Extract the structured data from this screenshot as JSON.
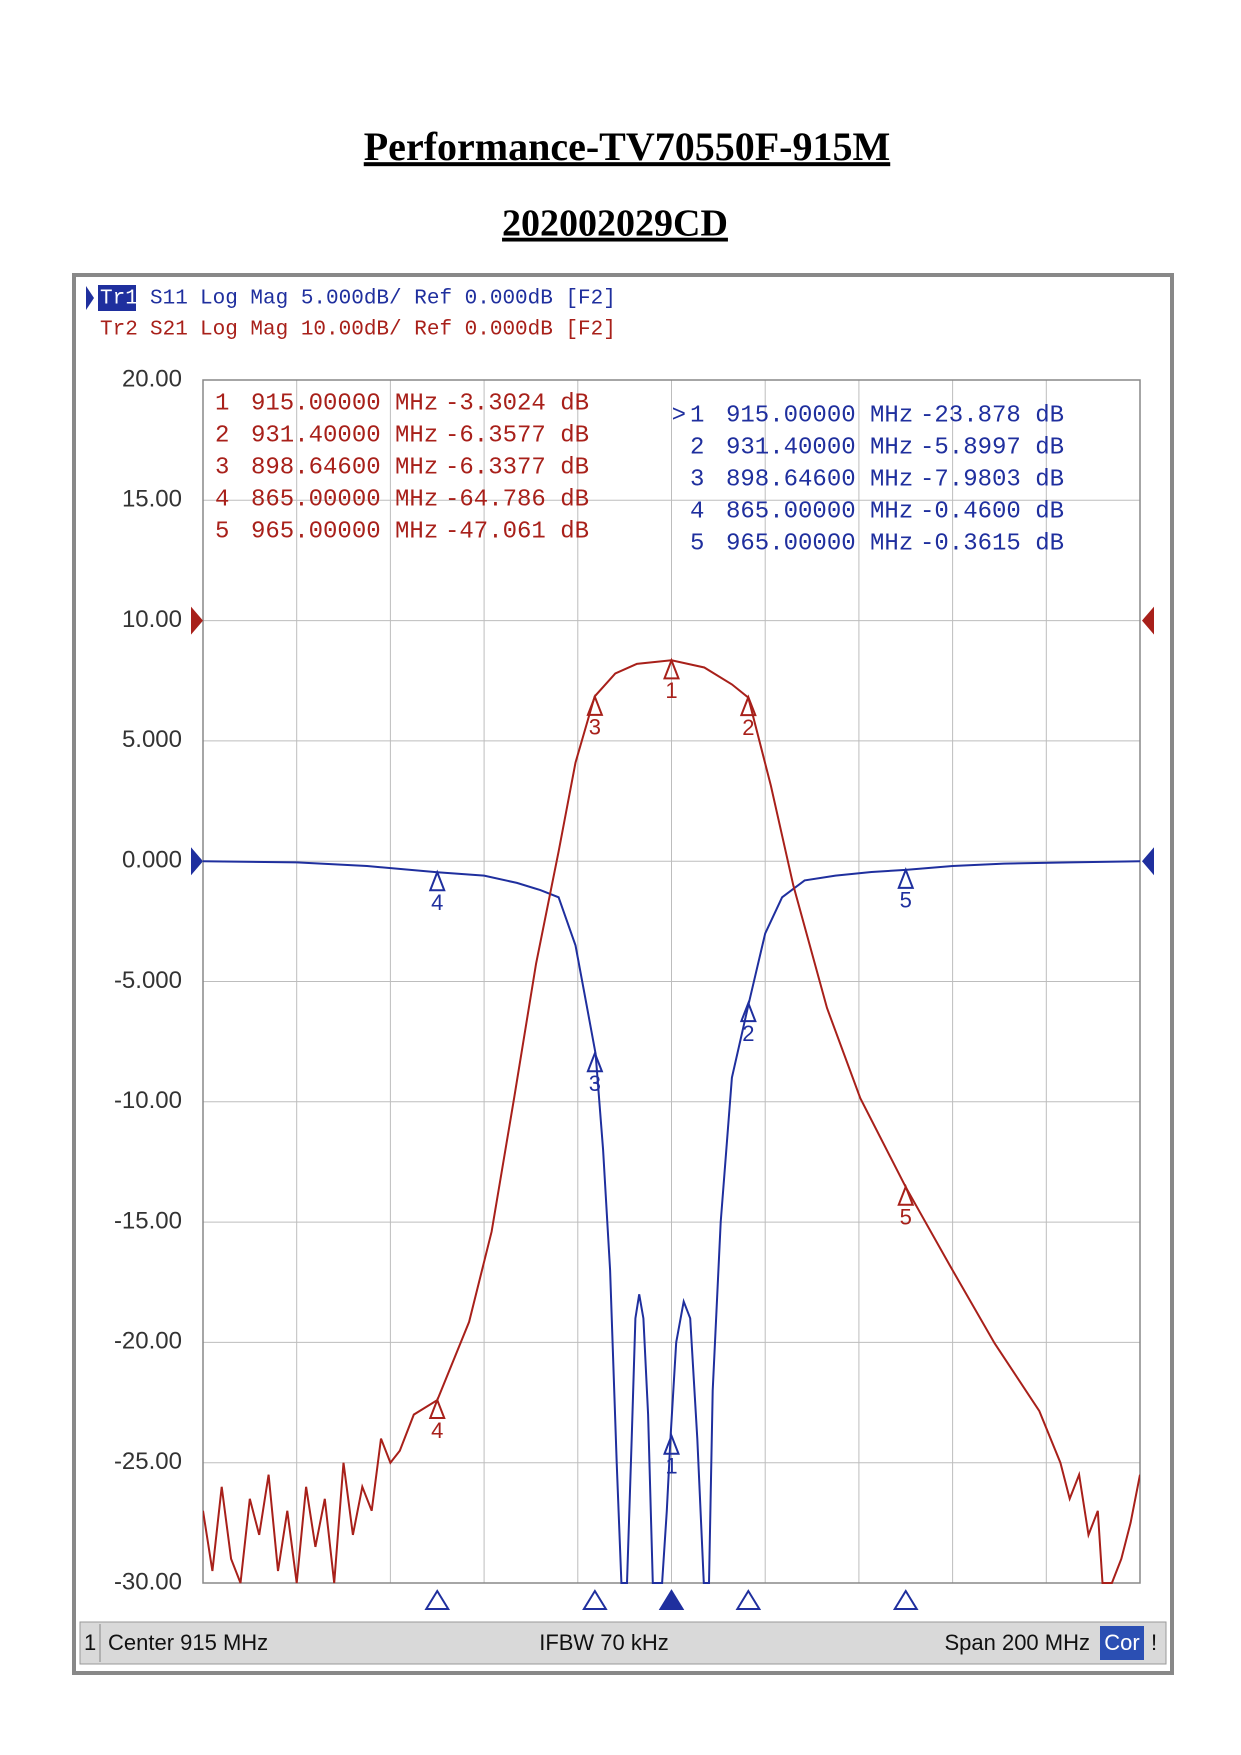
{
  "title": "Performance-TV70550F-915M",
  "subtitle": "202002029CD",
  "chart_data": {
    "type": "line",
    "xlim": [
      815,
      1015
    ],
    "ylim": [
      -30,
      20
    ],
    "y2lim": [
      -80,
      20
    ],
    "yticks": [
      {
        "value": 20,
        "label": "20.00"
      },
      {
        "value": 15,
        "label": "15.00"
      },
      {
        "value": 10,
        "label": "10.00"
      },
      {
        "value": 5,
        "label": "5.000"
      },
      {
        "value": 0,
        "label": "0.000"
      },
      {
        "value": -5,
        "label": "-5.000"
      },
      {
        "value": -10,
        "label": "-10.00"
      },
      {
        "value": -15,
        "label": "-15.00"
      },
      {
        "value": -20,
        "label": "-20.00"
      },
      {
        "value": -25,
        "label": "-25.00"
      },
      {
        "value": -30,
        "label": "-30.00"
      }
    ],
    "grid": true,
    "series": [
      {
        "trace": "Tr1",
        "name": "S11",
        "header": "Log Mag 5.000dB/ Ref 0.000dB [F2]",
        "ref": 0,
        "color": "#1f2f9e",
        "x": [
          815,
          835,
          850,
          865,
          875,
          882,
          887,
          890.9,
          894.5,
          896.9,
          898.8,
          900.4,
          901.9,
          903.3,
          904.3,
          905.5,
          906.5,
          907.3,
          908.1,
          909,
          910,
          911,
          911.9,
          913,
          914,
          914.8,
          916,
          917.6,
          919,
          920.5,
          921.9,
          923,
          923.8,
          925.5,
          927.9,
          931.5,
          935,
          938.6,
          943.4,
          950,
          957.7,
          965,
          975,
          986,
          1000,
          1015
        ],
        "values": [
          0,
          -0.05,
          -0.2,
          -0.46,
          -0.6,
          -0.9,
          -1.2,
          -1.5,
          -3.5,
          -6,
          -8,
          -12,
          -17,
          -25,
          -30,
          -30,
          -24,
          -19,
          -18,
          -19,
          -23,
          -30,
          -30,
          -30,
          -27,
          -23.9,
          -20,
          -18.3,
          -19,
          -24,
          -30,
          -30,
          -22,
          -15,
          -9,
          -5.9,
          -3,
          -1.5,
          -0.8,
          -0.6,
          -0.45,
          -0.36,
          -0.2,
          -0.1,
          -0.05,
          0
        ],
        "markers": [
          {
            "prefix": ">",
            "name": "1",
            "x": {
              "value": 915,
              "label": "915.00000 MHz"
            },
            "y": {
              "value": -23.878,
              "label": "-23.878 dB"
            }
          },
          {
            "name": "2",
            "x": {
              "value": 931.4,
              "label": "931.40000 MHz"
            },
            "y": {
              "value": -5.8997,
              "label": "-5.8997 dB"
            }
          },
          {
            "name": "3",
            "x": {
              "value": 898.646,
              "label": "898.64600 MHz"
            },
            "y": {
              "value": -7.9803,
              "label": "-7.9803 dB"
            }
          },
          {
            "name": "4",
            "x": {
              "value": 865,
              "label": "865.00000 MHz"
            },
            "y": {
              "value": -0.46,
              "label": "-0.4600 dB"
            }
          },
          {
            "name": "5",
            "x": {
              "value": 965,
              "label": "965.00000 MHz"
            },
            "y": {
              "value": -0.3615,
              "label": "-0.3615 dB"
            }
          }
        ]
      },
      {
        "trace": "Tr2",
        "name": "S21",
        "header": "Log Mag 10.00dB/ Ref 0.000dB [F2]",
        "ref": 0,
        "color": "#a8201a",
        "axis": "y2",
        "x": [
          815,
          817,
          819,
          821,
          823,
          825,
          827,
          829,
          831,
          833,
          835,
          837,
          839,
          841,
          843,
          845,
          847,
          849,
          851,
          853,
          855,
          857,
          860,
          865,
          871.8,
          876.6,
          881.4,
          886.1,
          890.9,
          894.5,
          898.6,
          903,
          907.6,
          915,
          922,
          927.9,
          931.4,
          936.2,
          941,
          948.2,
          955.3,
          965,
          974.4,
          984,
          993.5,
          998,
          1000,
          1002,
          1004,
          1006,
          1007,
          1009,
          1011,
          1013,
          1015
        ],
        "values": [
          -74,
          -79,
          -72,
          -78,
          -80,
          -73,
          -76,
          -71,
          -79,
          -74,
          -80,
          -72,
          -77,
          -73,
          -80,
          -70,
          -76,
          -72,
          -74,
          -68,
          -70,
          -69,
          -66,
          -64.8,
          -58.3,
          -50.8,
          -39.7,
          -28.5,
          -19.2,
          -11.8,
          -6.3,
          -4.4,
          -3.6,
          -3.3,
          -3.9,
          -5.3,
          -6.4,
          -13.7,
          -22,
          -32.2,
          -39.7,
          -47.1,
          -53.6,
          -60.1,
          -65.7,
          -70,
          -73,
          -71,
          -76,
          -74,
          -80,
          -80,
          -78,
          -75,
          -71
        ],
        "markers": [
          {
            "name": "1",
            "x": {
              "value": 915,
              "label": "915.00000 MHz"
            },
            "y": {
              "value": -3.3024,
              "label": "-3.3024 dB"
            }
          },
          {
            "name": "2",
            "x": {
              "value": 931.4,
              "label": "931.40000 MHz"
            },
            "y": {
              "value": -6.3577,
              "label": "-6.3577 dB"
            }
          },
          {
            "name": "3",
            "x": {
              "value": 898.646,
              "label": "898.64600 MHz"
            },
            "y": {
              "value": -6.3377,
              "label": "-6.3377 dB"
            }
          },
          {
            "name": "4",
            "x": {
              "value": 865,
              "label": "865.00000 MHz"
            },
            "y": {
              "value": -64.786,
              "label": "-64.786 dB"
            }
          },
          {
            "name": "5",
            "x": {
              "value": 965,
              "label": "965.00000 MHz"
            },
            "y": {
              "value": -47.061,
              "label": "-47.061 dB"
            }
          }
        ]
      }
    ],
    "footer": {
      "channel": "1",
      "center": "Center 915 MHz",
      "ifbw": "IFBW 70 kHz",
      "span": "Span 200 MHz",
      "correction": "Cor",
      "status": "!"
    }
  }
}
